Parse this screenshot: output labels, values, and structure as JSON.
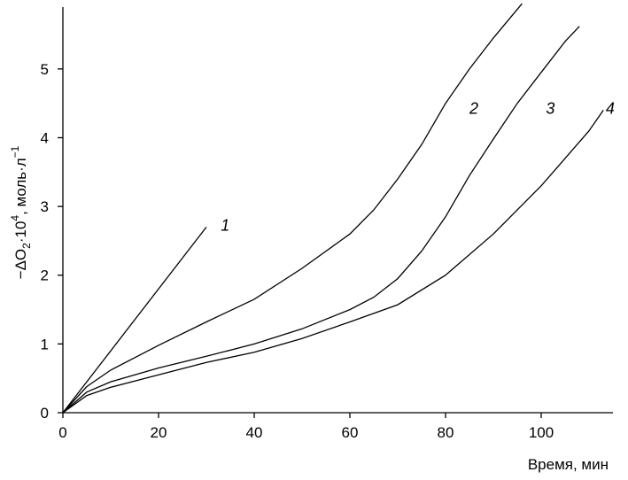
{
  "chart_data": {
    "type": "line",
    "title": "",
    "xlabel": "Время, мин",
    "ylabel": {
      "prefix": "−ΔO",
      "sub": "2",
      "mid": "·10",
      "sup": "4",
      "unit": ", моль·л",
      "unit_sup": "−1"
    },
    "xlim": [
      0,
      115
    ],
    "ylim": [
      0,
      5.9
    ],
    "xticks": [
      0,
      20,
      40,
      60,
      80,
      100
    ],
    "yticks": [
      0,
      1,
      2,
      3,
      4,
      5
    ],
    "grid": false,
    "legend": "none",
    "series": [
      {
        "label": "1",
        "label_at": [
          33,
          2.65
        ],
        "x": [
          0,
          30
        ],
        "y": [
          0,
          2.7
        ]
      },
      {
        "label": "2",
        "label_at": [
          85,
          4.35
        ],
        "x": [
          0,
          5,
          10,
          20,
          30,
          40,
          50,
          60,
          65,
          70,
          75,
          80,
          85,
          90,
          96
        ],
        "y": [
          0,
          0.38,
          0.62,
          0.98,
          1.32,
          1.65,
          2.1,
          2.6,
          2.95,
          3.4,
          3.9,
          4.5,
          5.0,
          5.45,
          5.95
        ]
      },
      {
        "label": "3",
        "label_at": [
          101,
          4.35
        ],
        "x": [
          0,
          5,
          10,
          20,
          30,
          40,
          50,
          60,
          65,
          70,
          75,
          80,
          85,
          90,
          95,
          100,
          105,
          108
        ],
        "y": [
          0,
          0.3,
          0.45,
          0.65,
          0.82,
          1.0,
          1.22,
          1.5,
          1.68,
          1.95,
          2.35,
          2.85,
          3.45,
          3.98,
          4.5,
          4.95,
          5.4,
          5.62
        ]
      },
      {
        "label": "4",
        "label_at": [
          113.5,
          4.35
        ],
        "x": [
          0,
          5,
          10,
          20,
          30,
          40,
          50,
          60,
          70,
          80,
          90,
          100,
          105,
          110,
          113
        ],
        "y": [
          0,
          0.25,
          0.37,
          0.55,
          0.73,
          0.88,
          1.08,
          1.32,
          1.57,
          2.0,
          2.6,
          3.3,
          3.7,
          4.1,
          4.4
        ]
      }
    ]
  }
}
